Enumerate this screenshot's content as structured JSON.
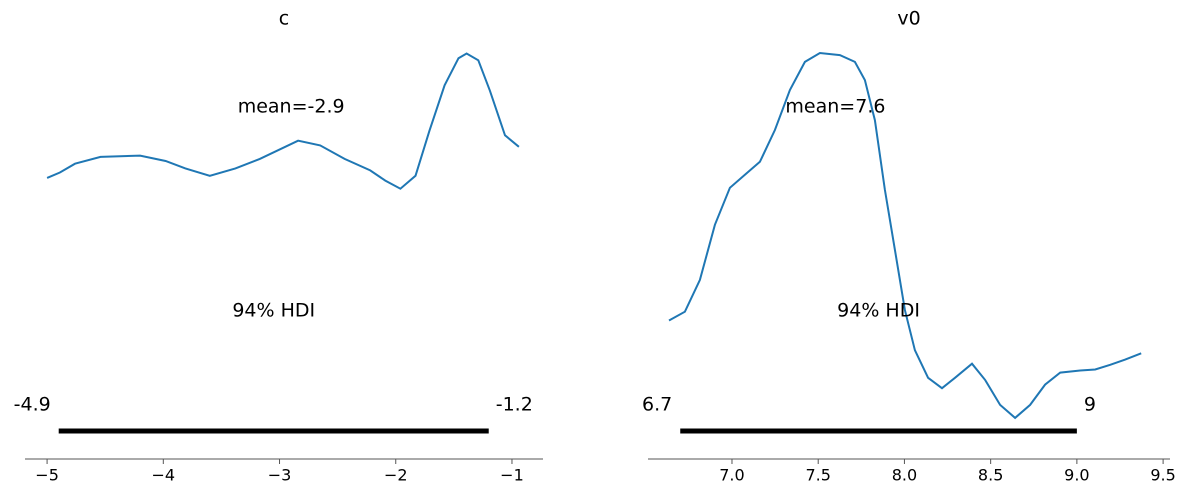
{
  "chart_data": [
    {
      "type": "density",
      "title": "c",
      "color": "#1f77b4",
      "x": [
        -5.0,
        -4.89,
        -4.76,
        -4.54,
        -4.2,
        -3.98,
        -3.81,
        -3.6,
        -3.38,
        -3.17,
        -2.84,
        -2.65,
        -2.44,
        -2.22,
        -2.09,
        -1.96,
        -1.83,
        -1.71,
        -1.58,
        -1.46,
        -1.39,
        -1.29,
        -1.19,
        -1.06,
        -0.94
      ],
      "values": [
        0.236,
        0.244,
        0.257,
        0.267,
        0.269,
        0.261,
        0.25,
        0.239,
        0.25,
        0.264,
        0.291,
        0.284,
        0.264,
        0.247,
        0.232,
        0.22,
        0.239,
        0.306,
        0.373,
        0.413,
        0.42,
        0.41,
        0.365,
        0.299,
        0.282
      ],
      "mean": -2.9,
      "mean_label": "mean=-2.9",
      "hdi": [
        -4.9,
        -1.2
      ],
      "hdi_label": "94% HDI",
      "xlim": [
        -5.19,
        -0.733
      ],
      "ylim": [
        -0.18,
        0.44
      ],
      "xticks": [
        {
          "value": -5,
          "label": "−5"
        },
        {
          "value": -4,
          "label": "−4"
        },
        {
          "value": -3,
          "label": "−3"
        },
        {
          "value": -2,
          "label": "−2"
        },
        {
          "value": -1,
          "label": "−1"
        }
      ]
    },
    {
      "type": "density",
      "title": "v0",
      "color": "#1f77b4",
      "x": [
        6.635,
        6.727,
        6.814,
        6.901,
        6.988,
        7.075,
        7.162,
        7.249,
        7.336,
        7.423,
        7.51,
        7.626,
        7.713,
        7.771,
        7.829,
        7.887,
        7.945,
        8.003,
        8.061,
        8.137,
        8.218,
        8.293,
        8.392,
        8.468,
        8.555,
        8.642,
        8.729,
        8.816,
        8.903,
        9.019,
        9.106,
        9.193,
        9.28,
        9.373
      ],
      "values": [
        0.206,
        0.223,
        0.284,
        0.39,
        0.461,
        0.486,
        0.511,
        0.572,
        0.649,
        0.703,
        0.72,
        0.716,
        0.703,
        0.668,
        0.591,
        0.457,
        0.342,
        0.226,
        0.149,
        0.096,
        0.076,
        0.096,
        0.123,
        0.092,
        0.044,
        0.019,
        0.044,
        0.083,
        0.106,
        0.11,
        0.112,
        0.121,
        0.131,
        0.143
      ],
      "mean": 7.6,
      "mean_label": "mean=7.6",
      "hdi": [
        6.7,
        9
      ],
      "hdi_label": "94% HDI",
      "xlim": [
        6.513,
        9.54
      ],
      "ylim": [
        -0.06,
        0.745
      ],
      "xticks": [
        {
          "value": 7.0,
          "label": "7.0"
        },
        7.5,
        {
          "value": 8.0,
          "label": "8.0"
        },
        8.5,
        {
          "value": 9.0,
          "label": "9.0"
        },
        9.5
      ]
    }
  ]
}
